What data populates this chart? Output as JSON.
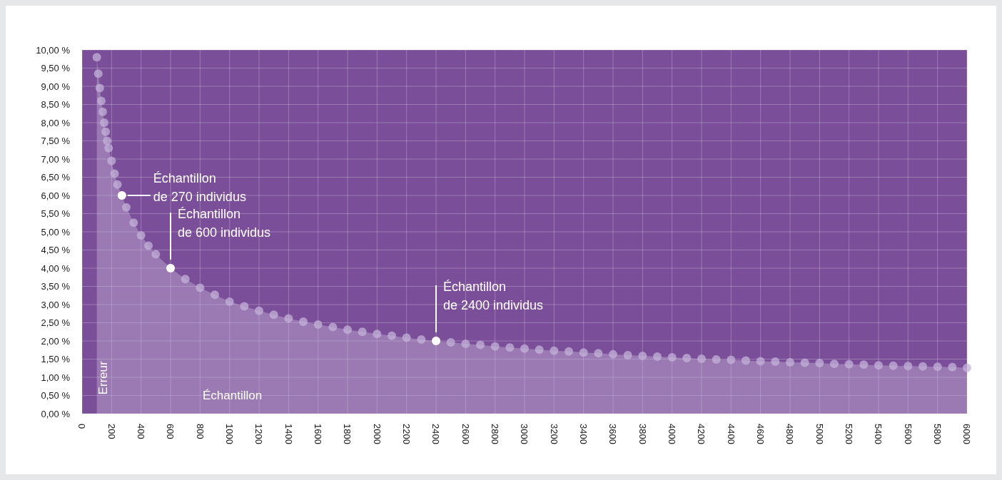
{
  "chart_data": {
    "type": "area",
    "xlabel": "Échantillon",
    "ylabel": "Erreur",
    "xlim": [
      0,
      6000
    ],
    "xticks": [
      0,
      200,
      400,
      600,
      800,
      1000,
      1200,
      1400,
      1600,
      1800,
      2000,
      2200,
      2400,
      2600,
      2800,
      3000,
      3200,
      3400,
      3600,
      3800,
      4000,
      4200,
      4400,
      4600,
      4800,
      5000,
      5200,
      5400,
      5600,
      5800,
      6000
    ],
    "ylim": [
      0,
      10
    ],
    "yticks": [
      {
        "value": 0,
        "label": "0,00 %"
      },
      {
        "value": 0.5,
        "label": "0,50 %"
      },
      {
        "value": 1,
        "label": "1,00 %"
      },
      {
        "value": 1.5,
        "label": "1,50 %"
      },
      {
        "value": 2,
        "label": "2,00 %"
      },
      {
        "value": 2.5,
        "label": "2,50 %"
      },
      {
        "value": 3,
        "label": "3,00 %"
      },
      {
        "value": 3.5,
        "label": "3,50 %"
      },
      {
        "value": 4,
        "label": "4,00 %"
      },
      {
        "value": 4.5,
        "label": "4,50 %"
      },
      {
        "value": 5,
        "label": "5,00 %"
      },
      {
        "value": 5.5,
        "label": "5,50 %"
      },
      {
        "value": 6,
        "label": "6,00 %"
      },
      {
        "value": 6.5,
        "label": "6,50 %"
      },
      {
        "value": 7,
        "label": "7,00 %"
      },
      {
        "value": 7.5,
        "label": "7,50 %"
      },
      {
        "value": 8,
        "label": "8,00 %"
      },
      {
        "value": 8.5,
        "label": "8,50 %"
      },
      {
        "value": 9,
        "label": "9,00 %"
      },
      {
        "value": 9.5,
        "label": "9,50 %"
      },
      {
        "value": 10,
        "label": "10,00 %"
      }
    ],
    "grid": true,
    "marker": "circle",
    "series": [
      {
        "color": "#c3b1d8",
        "x": [
          100,
          110,
          120,
          130,
          140,
          150,
          160,
          170,
          180,
          200,
          220,
          240,
          270,
          300,
          350,
          400,
          450,
          500,
          600,
          700,
          800,
          900,
          1000,
          1100,
          1200,
          1300,
          1400,
          1500,
          1600,
          1700,
          1800,
          1900,
          2000,
          2100,
          2200,
          2300,
          2400,
          2500,
          2600,
          2700,
          2800,
          2900,
          3000,
          3100,
          3200,
          3300,
          3400,
          3500,
          3600,
          3700,
          3800,
          3900,
          4000,
          4100,
          4200,
          4300,
          4400,
          4500,
          4600,
          4700,
          4800,
          4900,
          5000,
          5100,
          5200,
          5300,
          5400,
          5500,
          5600,
          5700,
          5800,
          5900,
          6000
        ],
        "values": [
          9.8,
          9.35,
          8.95,
          8.6,
          8.3,
          8.0,
          7.75,
          7.5,
          7.3,
          6.95,
          6.6,
          6.3,
          6.0,
          5.67,
          5.25,
          4.9,
          4.62,
          4.38,
          4.0,
          3.7,
          3.46,
          3.27,
          3.08,
          2.95,
          2.83,
          2.72,
          2.62,
          2.53,
          2.45,
          2.38,
          2.31,
          2.25,
          2.19,
          2.14,
          2.09,
          2.04,
          2.0,
          1.96,
          1.92,
          1.89,
          1.85,
          1.82,
          1.79,
          1.76,
          1.73,
          1.71,
          1.68,
          1.66,
          1.63,
          1.61,
          1.59,
          1.57,
          1.55,
          1.53,
          1.51,
          1.49,
          1.48,
          1.46,
          1.44,
          1.43,
          1.41,
          1.4,
          1.39,
          1.37,
          1.36,
          1.35,
          1.33,
          1.32,
          1.31,
          1.3,
          1.29,
          1.28,
          1.26
        ]
      }
    ],
    "annotations": [
      {
        "text": "Échantillon\nde 270 individus",
        "x": 270,
        "y": 6.0
      },
      {
        "text": "Échantillon\nde 600 individus",
        "x": 600,
        "y": 4.0
      },
      {
        "text": "Échantillon\nde 2400 individus",
        "x": 2400,
        "y": 2.0
      }
    ]
  }
}
